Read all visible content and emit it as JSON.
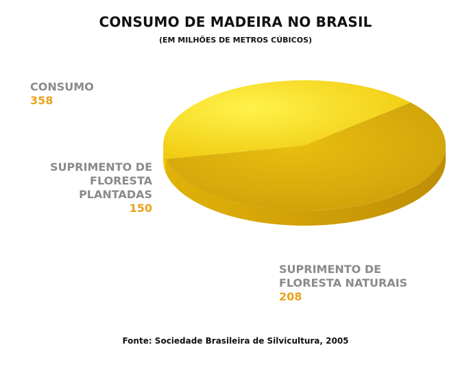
{
  "chart_data": {
    "type": "pie",
    "title": "CONSUMO DE MADEIRA NO BRASIL",
    "subtitle": "(EM MILHÕES DE METROS CÚBICOS)",
    "total": {
      "label": "CONSUMO",
      "value": 358
    },
    "slices": [
      {
        "label_line1": "SUPRIMENTO DE",
        "label_line2": "FLORESTA PLANTADAS",
        "value": 150,
        "color": "#f4d80a"
      },
      {
        "label_line1": "SUPRIMENTO DE",
        "label_line2": "FLORESTA NATURAIS",
        "value": 208,
        "color": "#dcb20a"
      }
    ],
    "source": "Fonte: Sociedade Brasileira de Silvicultura, 2005"
  },
  "colors": {
    "label_text": "#8a8a8a",
    "value_text": "#e8a21c"
  }
}
